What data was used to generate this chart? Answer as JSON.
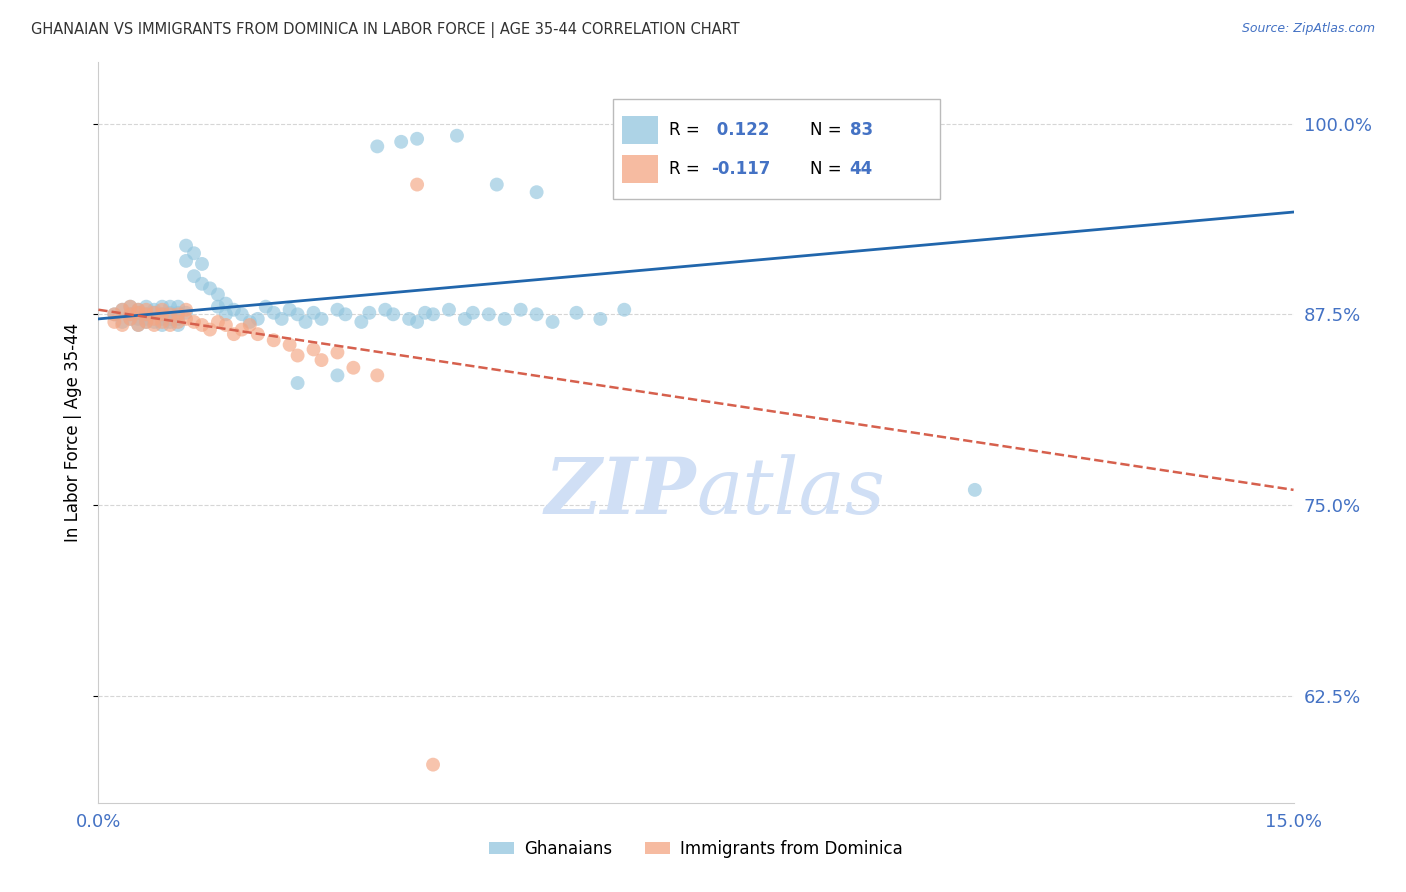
{
  "title": "GHANAIAN VS IMMIGRANTS FROM DOMINICA IN LABOR FORCE | AGE 35-44 CORRELATION CHART",
  "source_text": "Source: ZipAtlas.com",
  "ylabel_text": "In Labor Force | Age 35-44",
  "xlim": [
    0.0,
    0.15
  ],
  "ylim": [
    0.555,
    1.04
  ],
  "ytick_values": [
    0.625,
    0.75,
    0.875,
    1.0
  ],
  "xtick_values": [
    0.0,
    0.15
  ],
  "blue_color": "#92c5de",
  "pink_color": "#f4a582",
  "line_blue_color": "#2166ac",
  "line_pink_color": "#d6604d",
  "axis_color": "#4472C4",
  "grid_color": "#cccccc",
  "title_color": "#333333",
  "watermark_color": "#d0dff5",
  "blue_trend_x": [
    0.0,
    0.15
  ],
  "blue_trend_y": [
    0.872,
    0.942
  ],
  "pink_trend_x": [
    0.0,
    0.15
  ],
  "pink_trend_y": [
    0.878,
    0.76
  ],
  "blue_scatter_x": [
    0.002,
    0.003,
    0.003,
    0.004,
    0.004,
    0.004,
    0.005,
    0.005,
    0.005,
    0.005,
    0.006,
    0.006,
    0.006,
    0.006,
    0.007,
    0.007,
    0.007,
    0.008,
    0.008,
    0.008,
    0.008,
    0.009,
    0.009,
    0.009,
    0.009,
    0.01,
    0.01,
    0.01,
    0.01,
    0.011,
    0.011,
    0.011,
    0.012,
    0.012,
    0.013,
    0.013,
    0.014,
    0.015,
    0.015,
    0.016,
    0.016,
    0.017,
    0.018,
    0.019,
    0.02,
    0.021,
    0.022,
    0.023,
    0.024,
    0.025,
    0.026,
    0.027,
    0.028,
    0.03,
    0.031,
    0.033,
    0.034,
    0.036,
    0.037,
    0.039,
    0.04,
    0.041,
    0.042,
    0.044,
    0.046,
    0.047,
    0.049,
    0.051,
    0.053,
    0.055,
    0.057,
    0.06,
    0.063,
    0.066,
    0.04,
    0.038,
    0.035,
    0.045,
    0.03,
    0.025,
    0.05,
    0.055,
    0.11
  ],
  "blue_scatter_y": [
    0.875,
    0.878,
    0.87,
    0.875,
    0.872,
    0.88,
    0.876,
    0.872,
    0.868,
    0.878,
    0.875,
    0.87,
    0.88,
    0.872,
    0.876,
    0.87,
    0.878,
    0.875,
    0.872,
    0.88,
    0.868,
    0.876,
    0.872,
    0.88,
    0.87,
    0.876,
    0.88,
    0.872,
    0.868,
    0.876,
    0.92,
    0.91,
    0.9,
    0.915,
    0.895,
    0.908,
    0.892,
    0.88,
    0.888,
    0.875,
    0.882,
    0.878,
    0.875,
    0.87,
    0.872,
    0.88,
    0.876,
    0.872,
    0.878,
    0.875,
    0.87,
    0.876,
    0.872,
    0.878,
    0.875,
    0.87,
    0.876,
    0.878,
    0.875,
    0.872,
    0.87,
    0.876,
    0.875,
    0.878,
    0.872,
    0.876,
    0.875,
    0.872,
    0.878,
    0.875,
    0.87,
    0.876,
    0.872,
    0.878,
    0.99,
    0.988,
    0.985,
    0.992,
    0.835,
    0.83,
    0.96,
    0.955,
    0.76
  ],
  "pink_scatter_x": [
    0.002,
    0.002,
    0.003,
    0.003,
    0.004,
    0.004,
    0.004,
    0.005,
    0.005,
    0.005,
    0.006,
    0.006,
    0.006,
    0.007,
    0.007,
    0.007,
    0.008,
    0.008,
    0.008,
    0.009,
    0.009,
    0.01,
    0.01,
    0.011,
    0.011,
    0.012,
    0.013,
    0.014,
    0.015,
    0.016,
    0.017,
    0.018,
    0.019,
    0.02,
    0.022,
    0.024,
    0.025,
    0.027,
    0.028,
    0.03,
    0.032,
    0.035,
    0.04,
    0.042
  ],
  "pink_scatter_y": [
    0.875,
    0.87,
    0.878,
    0.868,
    0.875,
    0.872,
    0.88,
    0.876,
    0.868,
    0.878,
    0.875,
    0.87,
    0.878,
    0.876,
    0.868,
    0.872,
    0.875,
    0.87,
    0.878,
    0.875,
    0.868,
    0.875,
    0.87,
    0.872,
    0.878,
    0.87,
    0.868,
    0.865,
    0.87,
    0.868,
    0.862,
    0.865,
    0.868,
    0.862,
    0.858,
    0.855,
    0.848,
    0.852,
    0.845,
    0.85,
    0.84,
    0.835,
    0.96,
    0.58
  ]
}
